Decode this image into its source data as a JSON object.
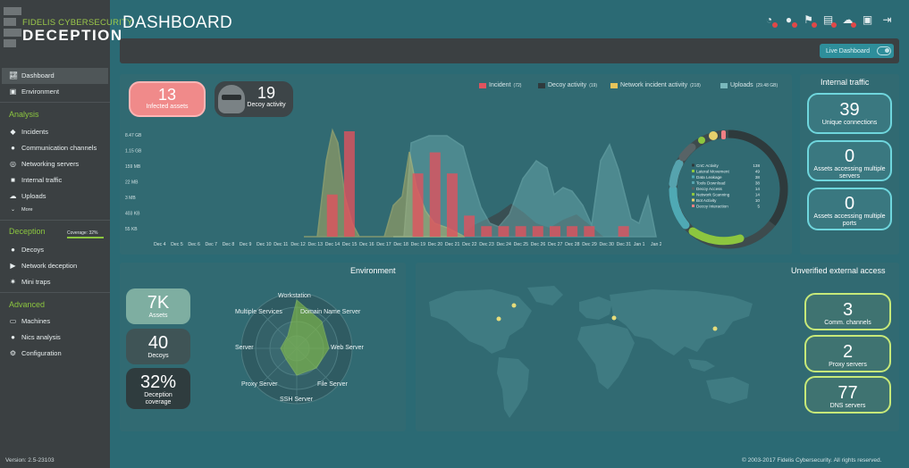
{
  "brand": {
    "line1": "FIDELIS CYBERSECURITY",
    "line2": "DECEPTION"
  },
  "page_title": "DASHBOARD",
  "live_dashboard_label": "Live Dashboard",
  "sidebar": {
    "dashboard": "Dashboard",
    "environment": "Environment",
    "analysis_title": "Analysis",
    "analysis_items": [
      "Incidents",
      "Communication channels",
      "Networking servers",
      "Internal traffic",
      "Uploads",
      "More"
    ],
    "deception_title": "Deception",
    "coverage": "Coverage: 32%",
    "deception_items": [
      "Decoys",
      "Network deception",
      "Mini traps"
    ],
    "advanced_title": "Advanced",
    "advanced_items": [
      "Machines",
      "Nics analysis",
      "Configuration"
    ],
    "version": "Version: 2.5-23103"
  },
  "kpis": {
    "infected": {
      "value": "13",
      "label": "Infected assets"
    },
    "decoy": {
      "value": "19",
      "label": "Decoy activity"
    }
  },
  "legend": [
    {
      "label": "Incident",
      "count": "(72)",
      "color": "#e0535e"
    },
    {
      "label": "Decoy activity",
      "count": "(19)",
      "color": "#2f3a3d"
    },
    {
      "label": "Network incident activity",
      "count": "(218)",
      "color": "#e6c45a"
    },
    {
      "label": "Uploads",
      "count": "(29.48 GB)",
      "color": "#7ab8bc"
    }
  ],
  "chart_data": {
    "type": "bar",
    "y_ticks": [
      "8.47 GB",
      "1.15 GB",
      "159 MB",
      "22 MB",
      "3 MB",
      "403 KB",
      "55 KB"
    ],
    "categories": [
      "Dec 4",
      "Dec 5",
      "Dec 6",
      "Dec 7",
      "Dec 8",
      "Dec 9",
      "Dec 10",
      "Dec 11",
      "Dec 12",
      "Dec 13",
      "Dec 14",
      "Dec 15",
      "Dec 16",
      "Dec 17",
      "Dec 18",
      "Dec 19",
      "Dec 20",
      "Dec 21",
      "Dec 22",
      "Dec 23",
      "Dec 24",
      "Dec 25",
      "Dec 26",
      "Dec 27",
      "Dec 28",
      "Dec 29",
      "Dec 30",
      "Dec 31",
      "Jan 1",
      "Jan 2"
    ],
    "incident_bars": [
      0,
      0,
      0,
      0,
      0,
      0,
      0,
      0,
      0,
      0,
      4,
      10,
      0,
      0,
      0,
      6,
      8,
      6,
      2,
      1,
      1,
      1,
      1,
      1,
      1,
      1,
      0,
      1,
      0,
      0
    ]
  },
  "donut_legend": [
    {
      "label": "CnC Activity",
      "value": "138"
    },
    {
      "label": "Lateral Movement",
      "value": "49"
    },
    {
      "label": "Data Leakage",
      "value": "38"
    },
    {
      "label": "Tools Download",
      "value": "38"
    },
    {
      "label": "Decoy Access",
      "value": "14"
    },
    {
      "label": "Network Scanning",
      "value": "14"
    },
    {
      "label": "Bot Activity",
      "value": "10"
    },
    {
      "label": "Decoy Interaction",
      "value": "5"
    }
  ],
  "internal_traffic": {
    "title": "Internal traffic",
    "items": [
      {
        "value": "39",
        "label": "Unique connections"
      },
      {
        "value": "0",
        "label": "Assets accessing multiple servers"
      },
      {
        "value": "0",
        "label": "Assets accessing multiple ports"
      }
    ]
  },
  "environment": {
    "title": "Environment",
    "boxes": [
      {
        "value": "7K",
        "label": "Assets"
      },
      {
        "value": "40",
        "label": "Decoys"
      },
      {
        "value": "32%",
        "label": "Deception coverage"
      }
    ],
    "radar_labels": [
      "Workstation",
      "Domain Name Server",
      "Web Server",
      "File Server",
      "SSH Server",
      "Proxy Server",
      "Server",
      "Multiple Services"
    ]
  },
  "external_access": {
    "title": "Unverified external access",
    "items": [
      {
        "value": "3",
        "label": "Comm. channels"
      },
      {
        "value": "2",
        "label": "Proxy servers"
      },
      {
        "value": "77",
        "label": "DNS servers"
      }
    ]
  },
  "footer": "© 2003-2017 Fidelis Cybersecurity. All rights reserved.",
  "header_icons": [
    "radar-icon",
    "user-alert-icon",
    "flag-icon",
    "report-icon",
    "cloud-icon",
    "camera-icon",
    "logout-icon"
  ]
}
